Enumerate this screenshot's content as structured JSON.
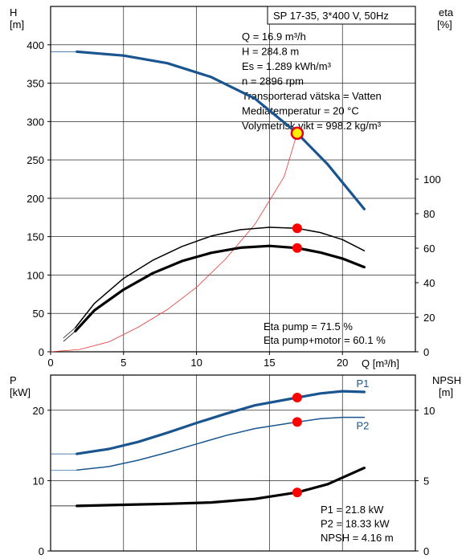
{
  "chart_data": [
    {
      "type": "line",
      "title": "SP 17-35, 3*400 V, 50Hz",
      "x_axis": {
        "label": "Q [m³/h]",
        "range": [
          0,
          25
        ],
        "ticks": [
          0,
          5,
          10,
          15,
          20
        ]
      },
      "y_left": {
        "label_line1": "H",
        "label_line2": "[m]",
        "range": [
          0,
          450
        ],
        "ticks": [
          0,
          50,
          100,
          150,
          200,
          250,
          300,
          350,
          400
        ]
      },
      "y_right": {
        "label_line1": "eta",
        "label_line2": "[%]",
        "range": [
          0,
          200
        ],
        "ticks": [
          0,
          20,
          40,
          60,
          80,
          100
        ]
      },
      "grid": true,
      "series": [
        {
          "role": "head",
          "axis": "left",
          "color": "#1a5590",
          "points": [
            [
              1.8,
              391
            ],
            [
              5,
              386
            ],
            [
              8,
              376
            ],
            [
              11,
              358
            ],
            [
              14,
              330
            ],
            [
              16.9,
              284.8
            ],
            [
              19,
              244
            ],
            [
              21.5,
              186
            ]
          ],
          "flat_lead_in": [
            [
              0,
              391
            ],
            [
              1.8,
              391
            ]
          ]
        },
        {
          "role": "system",
          "axis": "left",
          "color": "#e53935",
          "points": [
            [
              0,
              0
            ],
            [
              2,
              3
            ],
            [
              4,
              13
            ],
            [
              6,
              32
            ],
            [
              8,
              55
            ],
            [
              10,
              84
            ],
            [
              12,
              121
            ],
            [
              14,
              166
            ],
            [
              16,
              228
            ],
            [
              16.9,
              284.8
            ]
          ]
        },
        {
          "role": "eta-pump",
          "axis": "right",
          "color": "#000000",
          "points": [
            [
              1.7,
              14
            ],
            [
              3,
              28
            ],
            [
              5,
              42.5
            ],
            [
              7,
              53
            ],
            [
              9,
              61
            ],
            [
              11,
              67
            ],
            [
              13,
              70.7
            ],
            [
              15,
              72.1
            ],
            [
              16.9,
              71.5
            ],
            [
              18.5,
              69
            ],
            [
              20,
              65
            ],
            [
              21.5,
              58.5
            ]
          ]
        },
        {
          "role": "eta-pump-motor",
          "axis": "right",
          "color": "#000000",
          "points": [
            [
              1.7,
              12
            ],
            [
              3,
              24
            ],
            [
              5,
              36
            ],
            [
              7,
              45.5
            ],
            [
              9,
              52.5
            ],
            [
              11,
              57.3
            ],
            [
              13,
              60.3
            ],
            [
              15,
              61.3
            ],
            [
              16.9,
              60.1
            ],
            [
              18.5,
              57.5
            ],
            [
              20,
              54
            ],
            [
              21.5,
              49
            ]
          ]
        }
      ],
      "operating_point": {
        "q": 16.9,
        "h": 284.8,
        "eta_pump": 71.5,
        "eta_pump_motor": 60.1
      },
      "info_lines": [
        "Q = 16.9 m³/h",
        "H = 284.8 m",
        "Es = 1.289 kWh/m³",
        "n = 2896 rpm",
        "Transporterad vätska = Vatten",
        "Mediatemperatur = 20 °C",
        "Volymetrisk vikt = 998.2 kg/m³"
      ],
      "eta_lines": [
        "Eta pump = 71.5 %",
        "Eta pump+motor = 60.1 %"
      ]
    },
    {
      "type": "line",
      "x_axis": {
        "range": [
          0,
          25
        ]
      },
      "y_left": {
        "label_line1": "P",
        "label_line2": "[kW]",
        "range": [
          0,
          25
        ],
        "ticks": [
          0,
          10,
          20
        ]
      },
      "y_right": {
        "label_line1": "NPSH",
        "label_line2": "[m]",
        "range": [
          0,
          12.5
        ],
        "ticks": [
          0,
          5,
          10
        ]
      },
      "grid": true,
      "series": [
        {
          "name": "P1",
          "axis": "left",
          "color": "#1a5590",
          "points": [
            [
              1.8,
              13.8
            ],
            [
              4,
              14.5
            ],
            [
              6,
              15.5
            ],
            [
              8,
              16.8
            ],
            [
              10,
              18.2
            ],
            [
              12,
              19.5
            ],
            [
              14,
              20.7
            ],
            [
              16.9,
              21.8
            ],
            [
              18.5,
              22.4
            ],
            [
              20,
              22.7
            ],
            [
              21.5,
              22.6
            ]
          ],
          "flat_lead_in": [
            [
              0,
              13.8
            ],
            [
              1.8,
              13.8
            ]
          ]
        },
        {
          "name": "P2",
          "axis": "left",
          "color": "#1a5590",
          "points": [
            [
              1.8,
              11.5
            ],
            [
              4,
              12.0
            ],
            [
              6,
              12.9
            ],
            [
              8,
              14.0
            ],
            [
              10,
              15.2
            ],
            [
              12,
              16.4
            ],
            [
              14,
              17.4
            ],
            [
              16.9,
              18.33
            ],
            [
              18.5,
              18.8
            ],
            [
              20,
              19.0
            ],
            [
              21.5,
              19.0
            ]
          ],
          "flat_lead_in": [
            [
              0,
              11.5
            ],
            [
              1.8,
              11.5
            ]
          ]
        },
        {
          "role": "npsh",
          "axis": "right",
          "color": "#000000",
          "points": [
            [
              1.8,
              3.2
            ],
            [
              5,
              3.28
            ],
            [
              8,
              3.35
            ],
            [
              11,
              3.45
            ],
            [
              14,
              3.7
            ],
            [
              16.9,
              4.16
            ],
            [
              19,
              4.75
            ],
            [
              21.5,
              5.9
            ]
          ],
          "flat_lead_in": [
            [
              0,
              3.2
            ],
            [
              1.8,
              3.2
            ]
          ]
        }
      ],
      "operating_point": {
        "q": 16.9,
        "p1": 21.8,
        "p2": 18.33,
        "npsh": 4.16
      },
      "info_lines": [
        "P1 = 21.8 kW",
        "P2 = 18.33 kW",
        "NPSH = 4.16 m"
      ]
    }
  ]
}
